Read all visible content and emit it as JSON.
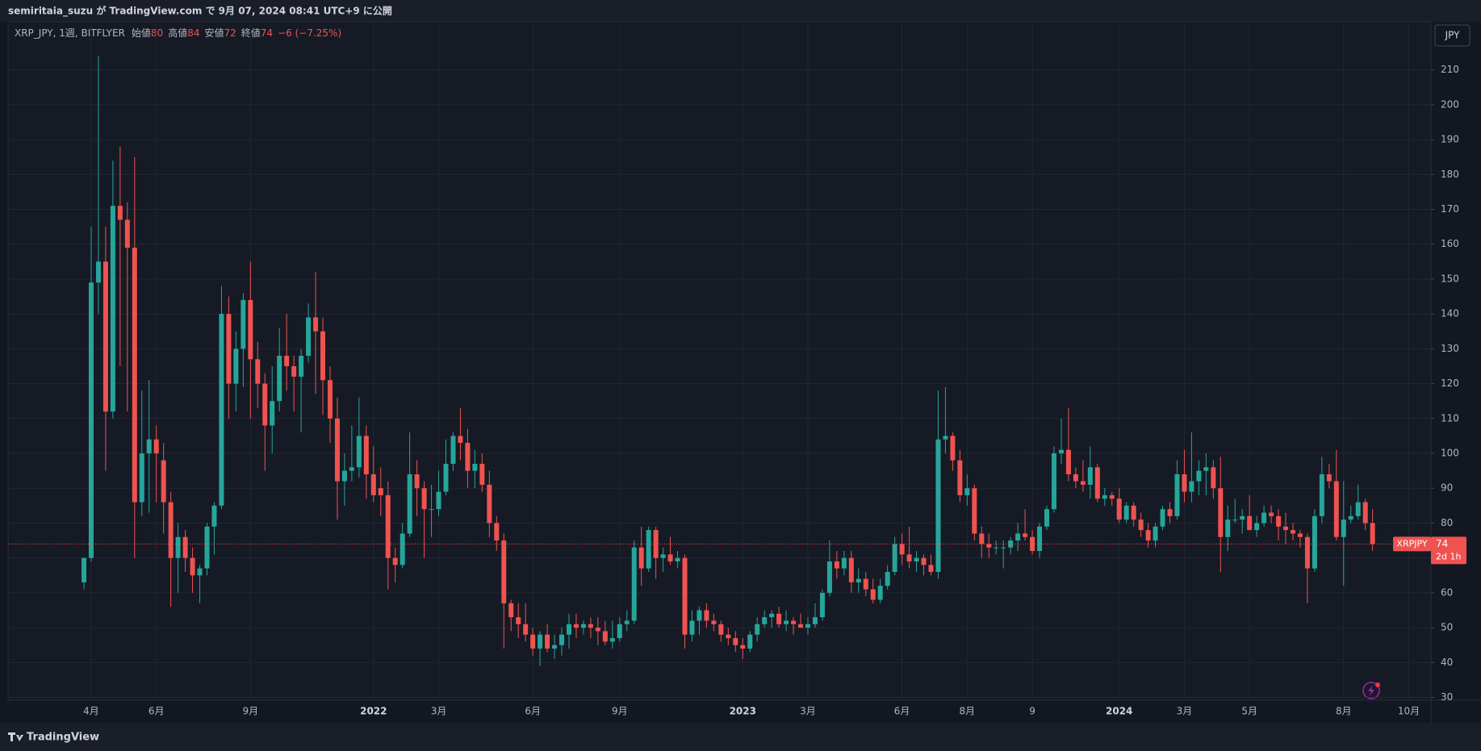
{
  "page": {
    "publish_note": "semiritaia_suzu が TradingView.com で 9月 07, 2024 08:41 UTC+9 に公開",
    "brand": "TradingView"
  },
  "chart_data": {
    "type": "candlestick",
    "title": "XRP_JPY, 1週, BITFLYER",
    "ohlc_labels": {
      "open": "始値",
      "high": "高値",
      "low": "安値",
      "close": "終値"
    },
    "change": "−6 (−7.25%)",
    "currency": "JPY",
    "symbol_tag": "XRPJPY",
    "countdown": "2d 1h",
    "up_color": "#26a69a",
    "down_color": "#ef5350",
    "grid": true,
    "categories": [
      null,
      "4月",
      null,
      null,
      null,
      null,
      null,
      null,
      null,
      null,
      "6月",
      null,
      null,
      null,
      null,
      null,
      null,
      null,
      null,
      null,
      null,
      null,
      null,
      "9月",
      null,
      null,
      null,
      null,
      null,
      null,
      null,
      null,
      null,
      null,
      null,
      null,
      null,
      null,
      null,
      null,
      "2022",
      null,
      null,
      null,
      null,
      null,
      null,
      null,
      null,
      "3月",
      null,
      null,
      null,
      null,
      null,
      null,
      null,
      null,
      null,
      null,
      null,
      null,
      "6月",
      null,
      null,
      null,
      null,
      null,
      null,
      null,
      null,
      null,
      null,
      null,
      "9月",
      null,
      null,
      null,
      null,
      null,
      null,
      null,
      null,
      null,
      null,
      null,
      null,
      null,
      null,
      null,
      null,
      "2023",
      null,
      null,
      null,
      null,
      null,
      null,
      null,
      null,
      "3月",
      null,
      null,
      null,
      null,
      null,
      null,
      null,
      null,
      null,
      null,
      null,
      null,
      "6月",
      null,
      null,
      null,
      null,
      null,
      null,
      null,
      null,
      "8月",
      null,
      null,
      null,
      null,
      null,
      null,
      null,
      null,
      "9",
      null,
      null,
      null,
      null,
      null,
      null,
      null,
      null,
      null,
      null,
      null,
      "2024",
      null,
      null,
      null,
      null,
      null,
      null,
      null,
      null,
      "3月",
      null,
      null,
      null,
      null,
      null,
      null,
      null,
      null,
      "5月",
      null,
      null,
      null,
      null,
      null,
      null,
      null,
      null,
      null,
      null,
      null,
      null,
      "8月",
      null,
      null,
      null,
      null,
      null,
      null,
      null,
      null,
      "10月",
      null,
      null,
      null,
      null,
      null
    ],
    "open": [
      63,
      70,
      149,
      155,
      112,
      171,
      167,
      159,
      86,
      100,
      104,
      98,
      86,
      70,
      76,
      70,
      65,
      67,
      79,
      85,
      140,
      120,
      130,
      144,
      127,
      120,
      108,
      115,
      128,
      125,
      122,
      128,
      139,
      135,
      121,
      110,
      92,
      95,
      96,
      105,
      94,
      90,
      88,
      70,
      68,
      77,
      94,
      90,
      84,
      84,
      89,
      97,
      105,
      103,
      95,
      97,
      91,
      80,
      75,
      57,
      53,
      51,
      48,
      44,
      48,
      44,
      45,
      48,
      51,
      50,
      51,
      50,
      49,
      46,
      47,
      51,
      52,
      73,
      67,
      78,
      70,
      71,
      69,
      70,
      48,
      52,
      55,
      52,
      51,
      48,
      47,
      45,
      44,
      48,
      51,
      53,
      54,
      51,
      52,
      51,
      50,
      51,
      53,
      60,
      69,
      67,
      70,
      63,
      64,
      61,
      58,
      62,
      66,
      74,
      71,
      69,
      70,
      68,
      66,
      104,
      105,
      98,
      88,
      90,
      77,
      74,
      73,
      73,
      73,
      75,
      77,
      76,
      72,
      79,
      84,
      100,
      101,
      94,
      92,
      91,
      96,
      87,
      88,
      87,
      81,
      85,
      81,
      78,
      75,
      79,
      84,
      82,
      94,
      89,
      92,
      95,
      96,
      90,
      76,
      81,
      81,
      82,
      78,
      80,
      83,
      82,
      79,
      78,
      77,
      76,
      67,
      82,
      94,
      92,
      76,
      81,
      82,
      86,
      80,
      null,
      null,
      null,
      null,
      null,
      null,
      null,
      null,
      null,
      null
    ],
    "high": [
      70,
      165,
      214,
      165,
      184,
      188,
      172,
      185,
      118,
      121,
      108,
      103,
      89,
      80,
      78,
      73,
      68,
      80,
      86,
      148,
      145,
      135,
      146,
      155,
      132,
      123,
      125,
      136,
      140,
      128,
      130,
      143,
      152,
      139,
      125,
      116,
      100,
      108,
      116,
      108,
      102,
      96,
      92,
      73,
      80,
      106,
      98,
      92,
      91,
      95,
      104,
      106,
      113,
      107,
      101,
      100,
      95,
      82,
      77,
      58,
      57,
      57,
      50,
      49,
      51,
      48,
      50,
      54,
      54,
      52,
      53,
      53,
      52,
      52,
      53,
      55,
      75,
      79,
      79,
      79,
      73,
      76,
      72,
      71,
      55,
      56,
      57,
      54,
      52,
      50,
      49,
      47,
      49,
      53,
      55,
      55,
      56,
      55,
      53,
      54,
      53,
      57,
      61,
      75,
      72,
      72,
      72,
      67,
      66,
      64,
      64,
      68,
      76,
      77,
      79,
      72,
      71,
      71,
      118,
      119,
      106,
      101,
      94,
      91,
      79,
      77,
      75,
      75,
      76,
      80,
      84,
      78,
      80,
      85,
      102,
      110,
      113,
      96,
      98,
      102,
      97,
      90,
      89,
      90,
      86,
      86,
      83,
      80,
      80,
      85,
      86,
      98,
      101,
      106,
      98,
      100,
      98,
      99,
      85,
      87,
      84,
      88,
      82,
      85,
      85,
      84,
      83,
      80,
      78,
      77,
      84,
      99,
      97,
      101,
      92,
      85,
      91,
      87,
      84,
      null,
      null,
      null,
      null,
      null,
      null,
      null,
      null,
      null,
      null
    ],
    "low": [
      61,
      69,
      140,
      95,
      110,
      125,
      112,
      70,
      82,
      83,
      86,
      77,
      56,
      60,
      66,
      60,
      57,
      65,
      71,
      84,
      110,
      112,
      119,
      110,
      113,
      95,
      100,
      112,
      118,
      112,
      106,
      126,
      117,
      111,
      103,
      81,
      85,
      92,
      93,
      87,
      86,
      82,
      61,
      63,
      67,
      76,
      82,
      70,
      76,
      82,
      88,
      95,
      98,
      90,
      90,
      89,
      76,
      72,
      44,
      49,
      47,
      46,
      42,
      39,
      43,
      41,
      42,
      44,
      47,
      48,
      47,
      45,
      45,
      44,
      46,
      49,
      51,
      62,
      66,
      64,
      66,
      68,
      67,
      44,
      46,
      48,
      50,
      49,
      46,
      45,
      43,
      41,
      43,
      46,
      50,
      50,
      50,
      49,
      48,
      50,
      48,
      50,
      52,
      59,
      64,
      65,
      60,
      60,
      59,
      57,
      57,
      61,
      65,
      68,
      67,
      66,
      65,
      65,
      64,
      100,
      95,
      86,
      85,
      75,
      70,
      70,
      71,
      67,
      71,
      72,
      75,
      71,
      70,
      78,
      83,
      97,
      92,
      90,
      89,
      87,
      86,
      85,
      85,
      80,
      80,
      79,
      76,
      73,
      73,
      78,
      80,
      81,
      86,
      86,
      88,
      88,
      87,
      66,
      72,
      80,
      77,
      78,
      76,
      79,
      80,
      75,
      74,
      75,
      73,
      57,
      66,
      80,
      90,
      75,
      62,
      80,
      81,
      78,
      72,
      null,
      null,
      null,
      null,
      null,
      null,
      null,
      null,
      null,
      null
    ],
    "close": [
      70,
      149,
      155,
      112,
      171,
      167,
      159,
      86,
      100,
      104,
      100,
      86,
      70,
      76,
      70,
      65,
      67,
      79,
      85,
      140,
      120,
      130,
      144,
      127,
      120,
      108,
      115,
      128,
      125,
      122,
      128,
      139,
      135,
      121,
      110,
      92,
      95,
      96,
      105,
      94,
      88,
      88,
      70,
      68,
      77,
      94,
      90,
      84,
      84,
      89,
      97,
      105,
      103,
      95,
      97,
      91,
      80,
      75,
      57,
      53,
      51,
      48,
      44,
      48,
      44,
      45,
      48,
      51,
      50,
      51,
      50,
      49,
      46,
      47,
      51,
      52,
      73,
      67,
      78,
      70,
      71,
      69,
      70,
      48,
      52,
      55,
      52,
      51,
      48,
      47,
      45,
      44,
      48,
      51,
      53,
      54,
      51,
      52,
      51,
      50,
      51,
      53,
      60,
      69,
      67,
      70,
      63,
      64,
      61,
      58,
      62,
      66,
      74,
      71,
      69,
      70,
      68,
      66,
      104,
      105,
      98,
      88,
      90,
      77,
      74,
      73,
      73,
      73,
      75,
      77,
      76,
      72,
      79,
      84,
      100,
      101,
      94,
      92,
      91,
      96,
      87,
      88,
      87,
      81,
      85,
      81,
      78,
      75,
      79,
      84,
      82,
      94,
      89,
      92,
      95,
      96,
      90,
      76,
      81,
      81,
      82,
      78,
      80,
      83,
      82,
      79,
      78,
      77,
      76,
      67,
      82,
      94,
      92,
      76,
      81,
      82,
      86,
      80,
      74,
      null,
      null,
      null,
      null,
      null,
      null,
      null,
      null,
      null,
      null
    ],
    "ylim": [
      29.2,
      223.8
    ],
    "yticks": [
      30,
      40,
      50,
      60,
      70,
      80,
      90,
      100,
      110,
      120,
      130,
      140,
      150,
      160,
      170,
      180,
      190,
      200,
      210
    ]
  }
}
